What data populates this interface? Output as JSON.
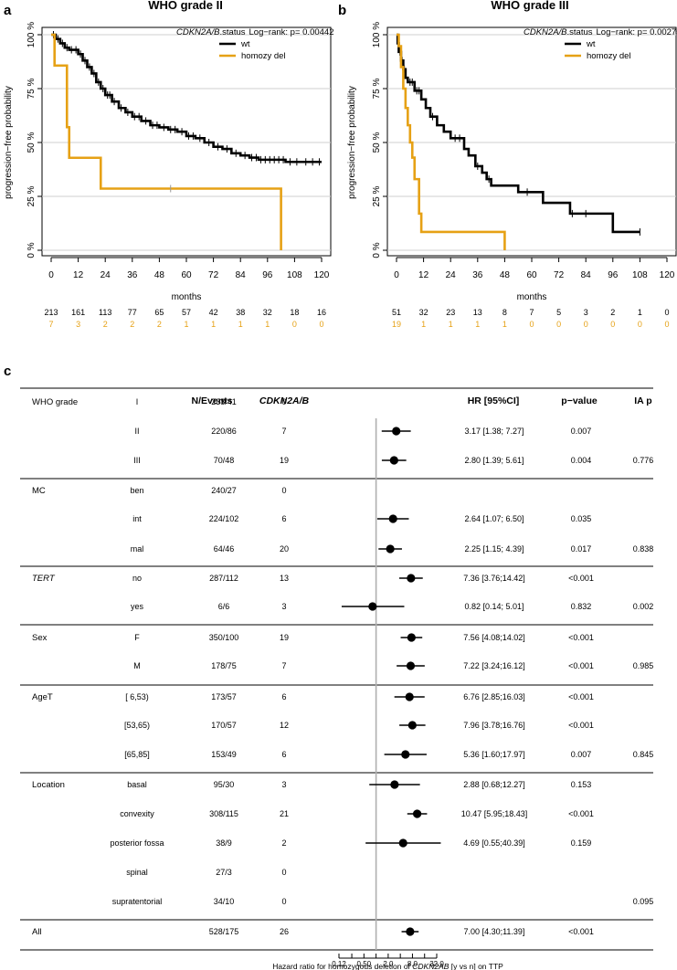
{
  "panel_letters": {
    "a": "a",
    "b": "b",
    "c": "c"
  },
  "chart_data": [
    {
      "type": "line",
      "subtype": "kaplan-meier",
      "title": "WHO grade II",
      "ylabel": "progression−free probability",
      "xlabel": "months",
      "xlim": [
        0,
        120
      ],
      "ylim": [
        0,
        1
      ],
      "x_ticks": [
        0,
        12,
        24,
        36,
        48,
        60,
        72,
        84,
        96,
        108,
        120
      ],
      "y_ticks": [
        {
          "v": 0,
          "label": "0 %"
        },
        {
          "v": 0.25,
          "label": "25 %"
        },
        {
          "v": 0.5,
          "label": "50 %"
        },
        {
          "v": 0.75,
          "label": "75 %"
        },
        {
          "v": 1,
          "label": "100 %"
        }
      ],
      "legend_title": "CDKN2A/B",
      "legend_title_suffix": ".status",
      "logrank": "Log−rank: p= 0.00442",
      "series": [
        {
          "name": "wt",
          "color": "#000000",
          "steps": [
            [
              0,
              1
            ],
            [
              2,
              0.98
            ],
            [
              4,
              0.96
            ],
            [
              6,
              0.94
            ],
            [
              8,
              0.93
            ],
            [
              12,
              0.91
            ],
            [
              14,
              0.88
            ],
            [
              16,
              0.85
            ],
            [
              18,
              0.82
            ],
            [
              20,
              0.78
            ],
            [
              22,
              0.75
            ],
            [
              24,
              0.72
            ],
            [
              27,
              0.69
            ],
            [
              30,
              0.66
            ],
            [
              33,
              0.64
            ],
            [
              36,
              0.62
            ],
            [
              40,
              0.6
            ],
            [
              44,
              0.58
            ],
            [
              48,
              0.57
            ],
            [
              52,
              0.56
            ],
            [
              56,
              0.55
            ],
            [
              60,
              0.53
            ],
            [
              64,
              0.52
            ],
            [
              68,
              0.5
            ],
            [
              72,
              0.48
            ],
            [
              76,
              0.47
            ],
            [
              80,
              0.45
            ],
            [
              84,
              0.44
            ],
            [
              88,
              0.43
            ],
            [
              92,
              0.42
            ],
            [
              104,
              0.41
            ],
            [
              120,
              0.41
            ]
          ],
          "censor": [
            1,
            3,
            5,
            7,
            9,
            11,
            13,
            15,
            17,
            19,
            21,
            23,
            25,
            26,
            28,
            31,
            34,
            37,
            39,
            42,
            45,
            47,
            50,
            53,
            55,
            58,
            61,
            63,
            66,
            70,
            74,
            78,
            82,
            86,
            89,
            91,
            93,
            95,
            97,
            99,
            101,
            103,
            106,
            109,
            113,
            116,
            119
          ]
        },
        {
          "name": "homozy del",
          "color": "#E6A115",
          "steps": [
            [
              0,
              1
            ],
            [
              1.5,
              0.857
            ],
            [
              7,
              0.571
            ],
            [
              8,
              0.429
            ],
            [
              22,
              0.286
            ],
            [
              102,
              0
            ]
          ],
          "censor": [
            53
          ]
        }
      ],
      "risk_table": {
        "wt": [
          213,
          161,
          113,
          77,
          65,
          57,
          42,
          38,
          32,
          18,
          16
        ],
        "homozy del": [
          7,
          3,
          2,
          2,
          2,
          1,
          1,
          1,
          1,
          0,
          0
        ]
      }
    },
    {
      "type": "line",
      "subtype": "kaplan-meier",
      "title": "WHO grade III",
      "ylabel": "progression−free probability",
      "xlabel": "months",
      "xlim": [
        0,
        120
      ],
      "ylim": [
        0,
        1
      ],
      "x_ticks": [
        0,
        12,
        24,
        36,
        48,
        60,
        72,
        84,
        96,
        108,
        120
      ],
      "y_ticks": [
        {
          "v": 0,
          "label": "0 %"
        },
        {
          "v": 0.25,
          "label": "25 %"
        },
        {
          "v": 0.5,
          "label": "50 %"
        },
        {
          "v": 0.75,
          "label": "75 %"
        },
        {
          "v": 1,
          "label": "100 %"
        }
      ],
      "legend_title": "CDKN2A/B",
      "legend_title_suffix": ".status",
      "logrank": "Log−rank: p= 0.00275",
      "series": [
        {
          "name": "wt",
          "color": "#000000",
          "steps": [
            [
              0,
              1
            ],
            [
              0.5,
              0.96
            ],
            [
              1,
              0.92
            ],
            [
              2,
              0.88
            ],
            [
              3,
              0.84
            ],
            [
              4,
              0.8
            ],
            [
              5,
              0.78
            ],
            [
              8,
              0.74
            ],
            [
              11,
              0.7
            ],
            [
              13,
              0.66
            ],
            [
              15,
              0.62
            ],
            [
              18,
              0.58
            ],
            [
              21,
              0.55
            ],
            [
              24,
              0.52
            ],
            [
              30,
              0.47
            ],
            [
              32,
              0.44
            ],
            [
              35,
              0.39
            ],
            [
              38,
              0.36
            ],
            [
              40,
              0.33
            ],
            [
              42,
              0.3
            ],
            [
              54,
              0.27
            ],
            [
              65,
              0.22
            ],
            [
              77,
              0.17
            ],
            [
              96,
              0.085
            ],
            [
              108,
              0.085
            ]
          ],
          "censor": [
            1.5,
            2.5,
            3.5,
            6,
            7,
            9,
            10,
            16,
            26,
            28,
            36,
            41,
            58,
            78,
            84,
            108
          ]
        },
        {
          "name": "homozy del",
          "color": "#E6A115",
          "steps": [
            [
              0,
              1
            ],
            [
              1,
              0.947
            ],
            [
              2,
              0.85
            ],
            [
              3,
              0.75
            ],
            [
              4,
              0.66
            ],
            [
              5,
              0.58
            ],
            [
              6,
              0.5
            ],
            [
              7,
              0.43
            ],
            [
              8,
              0.33
            ],
            [
              10,
              0.17
            ],
            [
              11,
              0.085
            ],
            [
              48,
              0
            ]
          ],
          "censor": []
        }
      ],
      "risk_table": {
        "wt": [
          51,
          32,
          23,
          13,
          8,
          7,
          5,
          3,
          2,
          1,
          0
        ],
        "homozy del": [
          19,
          1,
          1,
          1,
          1,
          0,
          0,
          0,
          0,
          0,
          0
        ]
      }
    },
    {
      "type": "forest",
      "headers": {
        "n_events": "N/Events",
        "gene": "CDKN2A/B",
        "hr": "HR [95%CI]",
        "p": "p−value",
        "ia": "IA p"
      },
      "groups": [
        {
          "name": "WHO grade",
          "italic": false,
          "rows": [
            {
              "level": "I",
              "n": "238/41",
              "count": "0",
              "hr": null,
              "lo": null,
              "hi": null,
              "hr_text": "",
              "p": "",
              "ia": ""
            },
            {
              "level": "II",
              "n": "220/86",
              "count": "7",
              "hr": 3.17,
              "lo": 1.38,
              "hi": 7.27,
              "hr_text": "3.17 [1.38; 7.27]",
              "p": "0.007",
              "ia": ""
            },
            {
              "level": "III",
              "n": "70/48",
              "count": "19",
              "hr": 2.8,
              "lo": 1.39,
              "hi": 5.61,
              "hr_text": "2.80 [1.39; 5.61]",
              "p": "0.004",
              "ia": "0.776"
            }
          ]
        },
        {
          "name": "MC",
          "italic": false,
          "rows": [
            {
              "level": "ben",
              "n": "240/27",
              "count": "0",
              "hr": null,
              "lo": null,
              "hi": null,
              "hr_text": "",
              "p": "",
              "ia": ""
            },
            {
              "level": "int",
              "n": "224/102",
              "count": "6",
              "hr": 2.64,
              "lo": 1.07,
              "hi": 6.5,
              "hr_text": "2.64 [1.07; 6.50]",
              "p": "0.035",
              "ia": ""
            },
            {
              "level": "mal",
              "n": "64/46",
              "count": "20",
              "hr": 2.25,
              "lo": 1.15,
              "hi": 4.39,
              "hr_text": "2.25 [1.15; 4.39]",
              "p": "0.017",
              "ia": "0.838"
            }
          ]
        },
        {
          "name": "TERT",
          "italic": true,
          "rows": [
            {
              "level": "no",
              "n": "287/112",
              "count": "13",
              "hr": 7.36,
              "lo": 3.76,
              "hi": 14.42,
              "hr_text": "7.36 [3.76;14.42]",
              "p": "<0.001",
              "ia": ""
            },
            {
              "level": "yes",
              "n": "6/6",
              "count": "3",
              "hr": 0.82,
              "lo": 0.14,
              "hi": 5.01,
              "hr_text": "0.82 [0.14; 5.01]",
              "p": "0.832",
              "ia": "0.002"
            }
          ]
        },
        {
          "name": "Sex",
          "italic": false,
          "rows": [
            {
              "level": "F",
              "n": "350/100",
              "count": "19",
              "hr": 7.56,
              "lo": 4.08,
              "hi": 14.02,
              "hr_text": "7.56 [4.08;14.02]",
              "p": "<0.001",
              "ia": ""
            },
            {
              "level": "M",
              "n": "178/75",
              "count": "7",
              "hr": 7.22,
              "lo": 3.24,
              "hi": 16.12,
              "hr_text": "7.22 [3.24;16.12]",
              "p": "<0.001",
              "ia": "0.985"
            }
          ]
        },
        {
          "name": "AgeT",
          "italic": false,
          "rows": [
            {
              "level": "[ 6,53)",
              "n": "173/57",
              "count": "6",
              "hr": 6.76,
              "lo": 2.85,
              "hi": 16.03,
              "hr_text": "6.76 [2.85;16.03]",
              "p": "<0.001",
              "ia": ""
            },
            {
              "level": "[53,65)",
              "n": "170/57",
              "count": "12",
              "hr": 7.96,
              "lo": 3.78,
              "hi": 16.76,
              "hr_text": "7.96 [3.78;16.76]",
              "p": "<0.001",
              "ia": ""
            },
            {
              "level": "[65,85]",
              "n": "153/49",
              "count": "6",
              "hr": 5.36,
              "lo": 1.6,
              "hi": 17.97,
              "hr_text": "5.36 [1.60;17.97]",
              "p": "0.007",
              "ia": "0.845"
            }
          ]
        },
        {
          "name": "Location",
          "italic": false,
          "rows": [
            {
              "level": "basal",
              "n": "95/30",
              "count": "3",
              "hr": 2.88,
              "lo": 0.68,
              "hi": 12.27,
              "hr_text": "2.88 [0.68;12.27]",
              "p": "0.153",
              "ia": ""
            },
            {
              "level": "convexity",
              "n": "308/115",
              "count": "21",
              "hr": 10.47,
              "lo": 5.95,
              "hi": 18.43,
              "hr_text": "10.47 [5.95;18.43]",
              "p": "<0.001",
              "ia": ""
            },
            {
              "level": "posterior fossa",
              "n": "38/9",
              "count": "2",
              "hr": 4.69,
              "lo": 0.55,
              "hi": 40.39,
              "hr_text": "4.69 [0.55;40.39]",
              "p": "0.159",
              "ia": ""
            },
            {
              "level": "spinal",
              "n": "27/3",
              "count": "0",
              "hr": null,
              "lo": null,
              "hi": null,
              "hr_text": "",
              "p": "",
              "ia": ""
            },
            {
              "level": "supratentorial",
              "n": "34/10",
              "count": "0",
              "hr": null,
              "lo": null,
              "hi": null,
              "hr_text": "",
              "p": "",
              "ia": "0.095"
            }
          ]
        },
        {
          "name": "All",
          "italic": false,
          "rows": [
            {
              "level": "",
              "n": "528/175",
              "count": "26",
              "hr": 7.0,
              "lo": 4.3,
              "hi": 11.39,
              "hr_text": "7.00 [4.30;11.39]",
              "p": "<0.001",
              "ia": ""
            }
          ]
        }
      ],
      "axis_ticks": [
        {
          "v": 0.12,
          "label": "0.12"
        },
        {
          "v": 0.5,
          "label": "0.50"
        },
        {
          "v": 2,
          "label": "2.0"
        },
        {
          "v": 8,
          "label": "8.0"
        },
        {
          "v": 32,
          "label": "32.0"
        }
      ],
      "axis_minor": [
        0.25,
        1,
        4,
        16
      ],
      "reference": 1,
      "xlabel_prefix": "Hazard ratio for homozygous deletion of ",
      "xlabel_gene": "CDKN2AB",
      "xlabel_suffix": " [y vs n] on TTP"
    }
  ]
}
